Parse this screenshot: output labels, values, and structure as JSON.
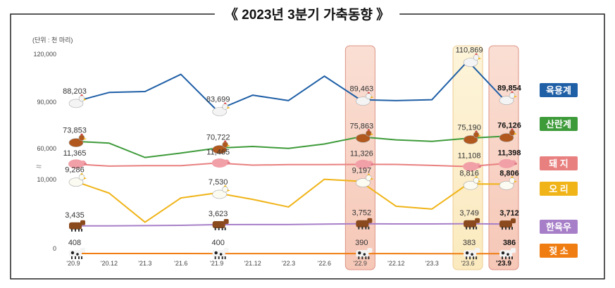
{
  "chart_data": {
    "type": "line",
    "title": "《 2023년  3분기  가축동향 》",
    "unit_note": "(단위 : 천 마리)",
    "categories": [
      "'20.9",
      "'20.12",
      "'21.3",
      "'21.6",
      "'21.9",
      "'21.12",
      "'22.3",
      "'22.6",
      "'22.9",
      "'22.12",
      "'23.3",
      "'23.6",
      "'23.9"
    ],
    "y_ticks": [
      "120,000",
      "90,000",
      "60,000",
      "10,000",
      "0"
    ],
    "axis_break": "≈",
    "highlight_categories": [
      "'22.9",
      "'23.6",
      "'23.9"
    ],
    "labeled_points": [
      0,
      4,
      8,
      11,
      12
    ],
    "series": [
      {
        "name": "육용계",
        "color": "#1F5FA6",
        "values": [
          88203,
          93500,
          94000,
          103500,
          83699,
          92000,
          89000,
          102500,
          89463,
          89000,
          89500,
          110869,
          89854
        ],
        "labels": [
          "88,203",
          "83,699",
          "89,463",
          "110,869",
          "89,854"
        ]
      },
      {
        "name": "산란계",
        "color": "#3E9B3A",
        "values": [
          73853,
          73000,
          66500,
          68500,
          70722,
          71500,
          70600,
          72600,
          75863,
          74500,
          73800,
          75190,
          76126
        ],
        "labels": [
          "73,853",
          "70,722",
          "75,863",
          "75,190",
          "76,126"
        ]
      },
      {
        "name": "돼  지",
        "color": "#E98080",
        "values": [
          11365,
          11150,
          11200,
          11200,
          11465,
          11250,
          11300,
          11300,
          11326,
          11320,
          11220,
          11108,
          11398
        ],
        "labels": [
          "11,365",
          "11,465",
          "11,326",
          "11,108",
          "11,398"
        ]
      },
      {
        "name": "오  리",
        "color": "#F0B418",
        "values": [
          9286,
          7500,
          3300,
          6800,
          7530,
          6600,
          5500,
          9500,
          9197,
          5600,
          5200,
          8816,
          8806
        ],
        "labels": [
          "9,286",
          "7,530",
          "9,197",
          "8,816",
          "8,806"
        ]
      },
      {
        "name": "한육우",
        "color": "#A77FC8",
        "values": [
          3435,
          3440,
          3480,
          3520,
          3623,
          3630,
          3640,
          3700,
          3752,
          3720,
          3720,
          3749,
          3712
        ],
        "labels": [
          "3,435",
          "3,623",
          "3,752",
          "3,749",
          "3,712"
        ]
      },
      {
        "name": "젖  소",
        "color": "#F07D12",
        "values": [
          408,
          404,
          402,
          401,
          400,
          397,
          395,
          392,
          390,
          388,
          386,
          383,
          386
        ],
        "labels": [
          "408",
          "400",
          "390",
          "383",
          "386"
        ]
      }
    ]
  }
}
